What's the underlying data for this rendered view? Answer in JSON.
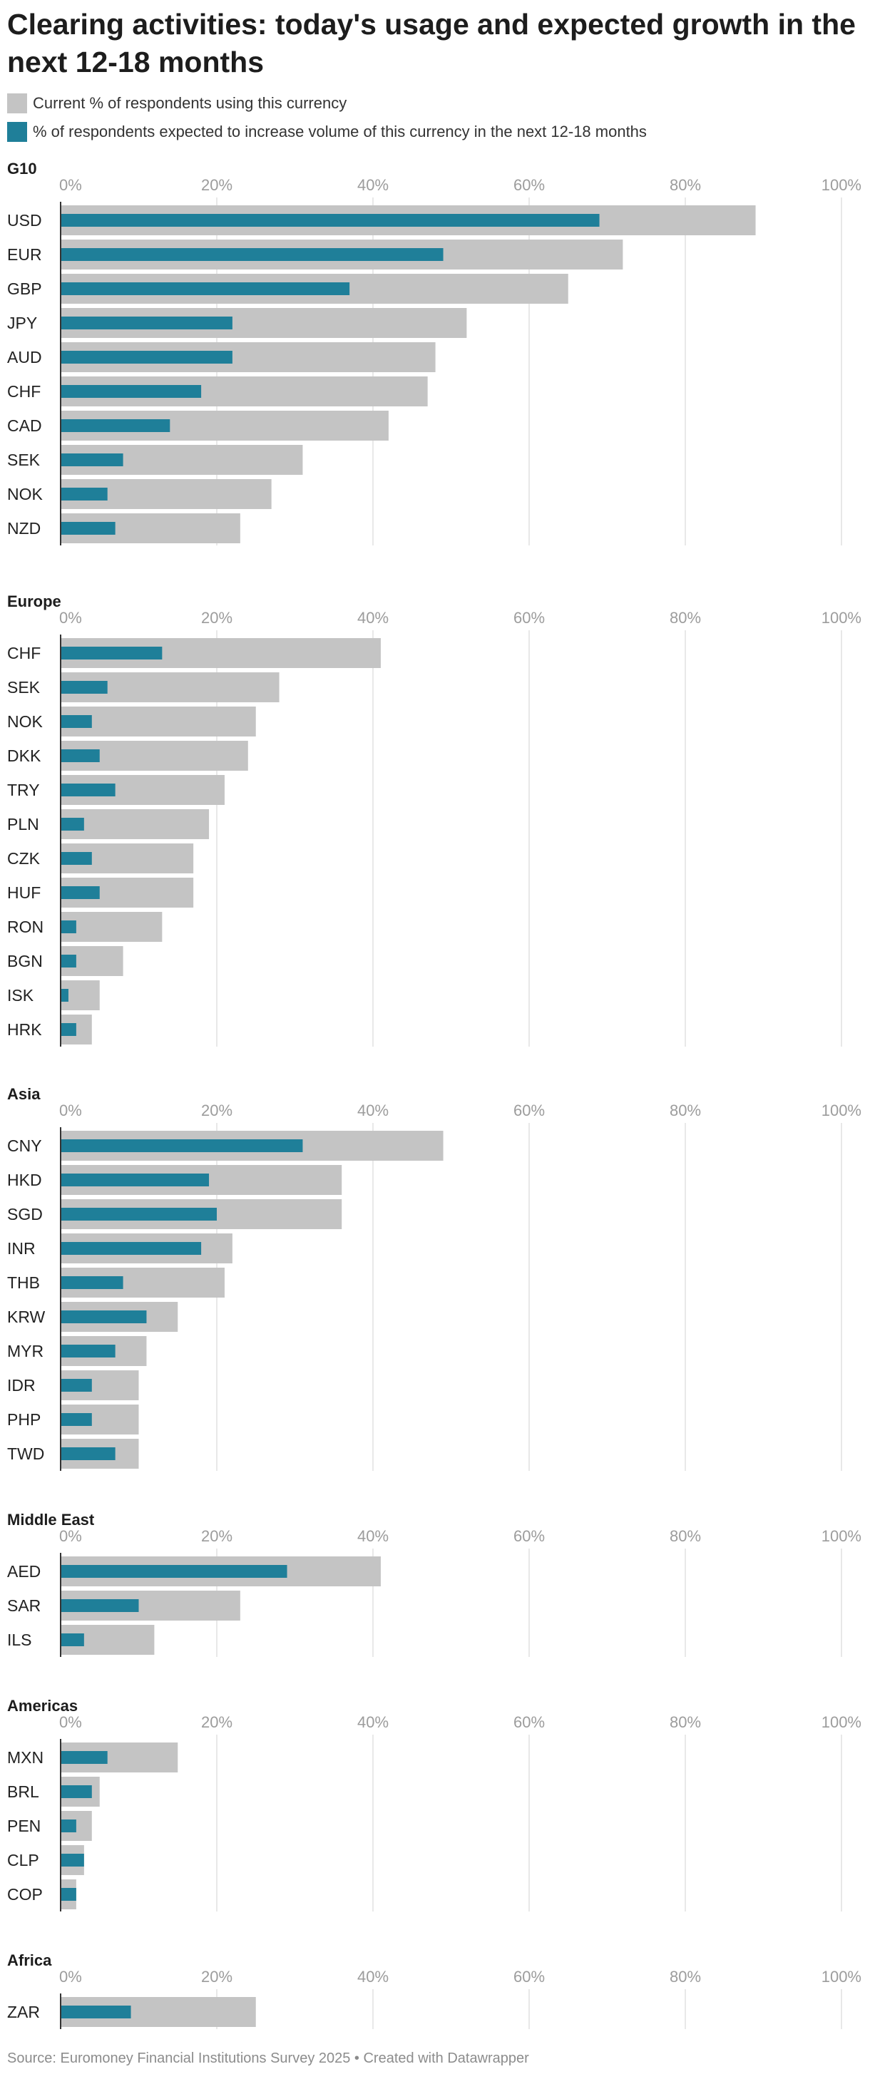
{
  "title": "Clearing activities: today's usage and expected growth in the next 12-18 months",
  "legend": {
    "current_label": "Current % of respondents using this currency",
    "expected_label": "% of respondents expected to increase volume of this currency in the next 12-18 months"
  },
  "colors": {
    "current": "#c4c4c4",
    "expected": "#1f7f99",
    "grid": "#e0e0e0",
    "tick": "#9c9c9c",
    "baseline": "#333333"
  },
  "source": "Source: Euromoney Financial Institutions Survey 2025 • Created with Datawrapper",
  "chart_data": [
    {
      "type": "bar",
      "orientation": "horizontal",
      "title": "G10",
      "xlim": [
        0,
        100
      ],
      "x_ticks": [
        "0%",
        "20%",
        "40%",
        "60%",
        "80%",
        "100%"
      ],
      "categories": [
        "USD",
        "EUR",
        "GBP",
        "JPY",
        "AUD",
        "CHF",
        "CAD",
        "SEK",
        "NOK",
        "NZD"
      ],
      "series": [
        {
          "name": "Current % of respondents using this currency",
          "values": [
            89,
            72,
            65,
            52,
            48,
            47,
            42,
            31,
            27,
            23
          ]
        },
        {
          "name": "% of respondents expected to increase volume of this currency in the next 12-18 months",
          "values": [
            69,
            49,
            37,
            22,
            22,
            18,
            14,
            8,
            6,
            7
          ]
        }
      ]
    },
    {
      "type": "bar",
      "orientation": "horizontal",
      "title": "Europe",
      "xlim": [
        0,
        100
      ],
      "x_ticks": [
        "0%",
        "20%",
        "40%",
        "60%",
        "80%",
        "100%"
      ],
      "categories": [
        "CHF",
        "SEK",
        "NOK",
        "DKK",
        "TRY",
        "PLN",
        "CZK",
        "HUF",
        "RON",
        "BGN",
        "ISK",
        "HRK"
      ],
      "series": [
        {
          "name": "Current % of respondents using this currency",
          "values": [
            41,
            28,
            25,
            24,
            21,
            19,
            17,
            17,
            13,
            8,
            5,
            4
          ]
        },
        {
          "name": "% of respondents expected to increase volume of this currency in the next 12-18 months",
          "values": [
            13,
            6,
            4,
            5,
            7,
            3,
            4,
            5,
            2,
            2,
            1,
            2
          ]
        }
      ]
    },
    {
      "type": "bar",
      "orientation": "horizontal",
      "title": "Asia",
      "xlim": [
        0,
        100
      ],
      "x_ticks": [
        "0%",
        "20%",
        "40%",
        "60%",
        "80%",
        "100%"
      ],
      "categories": [
        "CNY",
        "HKD",
        "SGD",
        "INR",
        "THB",
        "KRW",
        "MYR",
        "IDR",
        "PHP",
        "TWD"
      ],
      "series": [
        {
          "name": "Current % of respondents using this currency",
          "values": [
            49,
            36,
            36,
            22,
            21,
            15,
            11,
            10,
            10,
            10
          ]
        },
        {
          "name": "% of respondents expected to increase volume of this currency in the next 12-18 months",
          "values": [
            31,
            19,
            20,
            18,
            8,
            11,
            7,
            4,
            4,
            7
          ]
        }
      ]
    },
    {
      "type": "bar",
      "orientation": "horizontal",
      "title": "Middle East",
      "xlim": [
        0,
        100
      ],
      "x_ticks": [
        "0%",
        "20%",
        "40%",
        "60%",
        "80%",
        "100%"
      ],
      "categories": [
        "AED",
        "SAR",
        "ILS"
      ],
      "series": [
        {
          "name": "Current % of respondents using this currency",
          "values": [
            41,
            23,
            12
          ]
        },
        {
          "name": "% of respondents expected to increase volume of this currency in the next 12-18 months",
          "values": [
            29,
            10,
            3
          ]
        }
      ]
    },
    {
      "type": "bar",
      "orientation": "horizontal",
      "title": "Americas",
      "xlim": [
        0,
        100
      ],
      "x_ticks": [
        "0%",
        "20%",
        "40%",
        "60%",
        "80%",
        "100%"
      ],
      "categories": [
        "MXN",
        "BRL",
        "PEN",
        "CLP",
        "COP"
      ],
      "series": [
        {
          "name": "Current % of respondents using this currency",
          "values": [
            15,
            5,
            4,
            3,
            2
          ]
        },
        {
          "name": "% of respondents expected to increase volume of this currency in the next 12-18 months",
          "values": [
            6,
            4,
            2,
            3,
            2
          ]
        }
      ]
    },
    {
      "type": "bar",
      "orientation": "horizontal",
      "title": "Africa",
      "xlim": [
        0,
        100
      ],
      "x_ticks": [
        "0%",
        "20%",
        "40%",
        "60%",
        "80%",
        "100%"
      ],
      "categories": [
        "ZAR"
      ],
      "series": [
        {
          "name": "Current % of respondents using this currency",
          "values": [
            25
          ]
        },
        {
          "name": "% of respondents expected to increase volume of this currency in the next 12-18 months",
          "values": [
            9
          ]
        }
      ]
    }
  ]
}
